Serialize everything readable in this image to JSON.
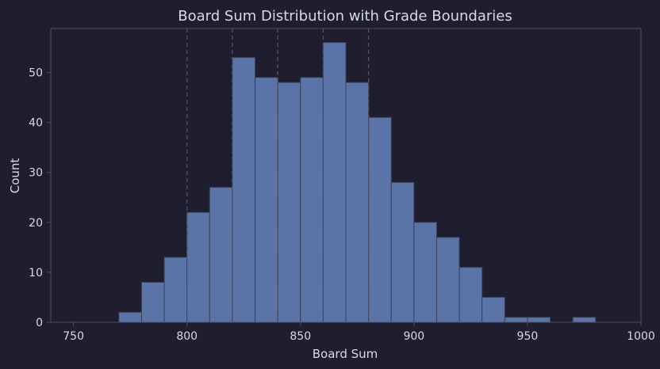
{
  "chart_data": {
    "type": "bar",
    "title": "Board Sum Distribution with Grade Boundaries",
    "xlabel": "Board Sum",
    "ylabel": "Count",
    "xlim": [
      740,
      1000
    ],
    "ylim": [
      0,
      58.8
    ],
    "xticks": [
      750,
      800,
      850,
      900,
      950,
      1000
    ],
    "yticks": [
      0,
      10,
      20,
      30,
      40,
      50
    ],
    "bins": [
      {
        "start": 770,
        "end": 780,
        "value": 2
      },
      {
        "start": 780,
        "end": 790,
        "value": 8
      },
      {
        "start": 790,
        "end": 800,
        "value": 13
      },
      {
        "start": 800,
        "end": 810,
        "value": 22
      },
      {
        "start": 810,
        "end": 820,
        "value": 27
      },
      {
        "start": 820,
        "end": 830,
        "value": 53
      },
      {
        "start": 830,
        "end": 840,
        "value": 49
      },
      {
        "start": 840,
        "end": 850,
        "value": 48
      },
      {
        "start": 850,
        "end": 860,
        "value": 49
      },
      {
        "start": 860,
        "end": 870,
        "value": 56
      },
      {
        "start": 870,
        "end": 880,
        "value": 48
      },
      {
        "start": 880,
        "end": 890,
        "value": 41
      },
      {
        "start": 890,
        "end": 900,
        "value": 28
      },
      {
        "start": 900,
        "end": 910,
        "value": 20
      },
      {
        "start": 910,
        "end": 920,
        "value": 17
      },
      {
        "start": 920,
        "end": 930,
        "value": 11
      },
      {
        "start": 930,
        "end": 940,
        "value": 5
      },
      {
        "start": 940,
        "end": 950,
        "value": 1
      },
      {
        "start": 950,
        "end": 960,
        "value": 1
      },
      {
        "start": 970,
        "end": 980,
        "value": 1
      }
    ],
    "grade_boundaries": [
      800,
      820,
      840,
      860,
      880
    ],
    "grid": false,
    "legend": "none",
    "colors": {
      "background": "#1f1e2e",
      "bar_fill": "#5b74a8",
      "bar_edge": "#3b4058",
      "axis": "#4c4d63",
      "text": "#d7d8ea",
      "boundary": "#4f5066"
    }
  }
}
